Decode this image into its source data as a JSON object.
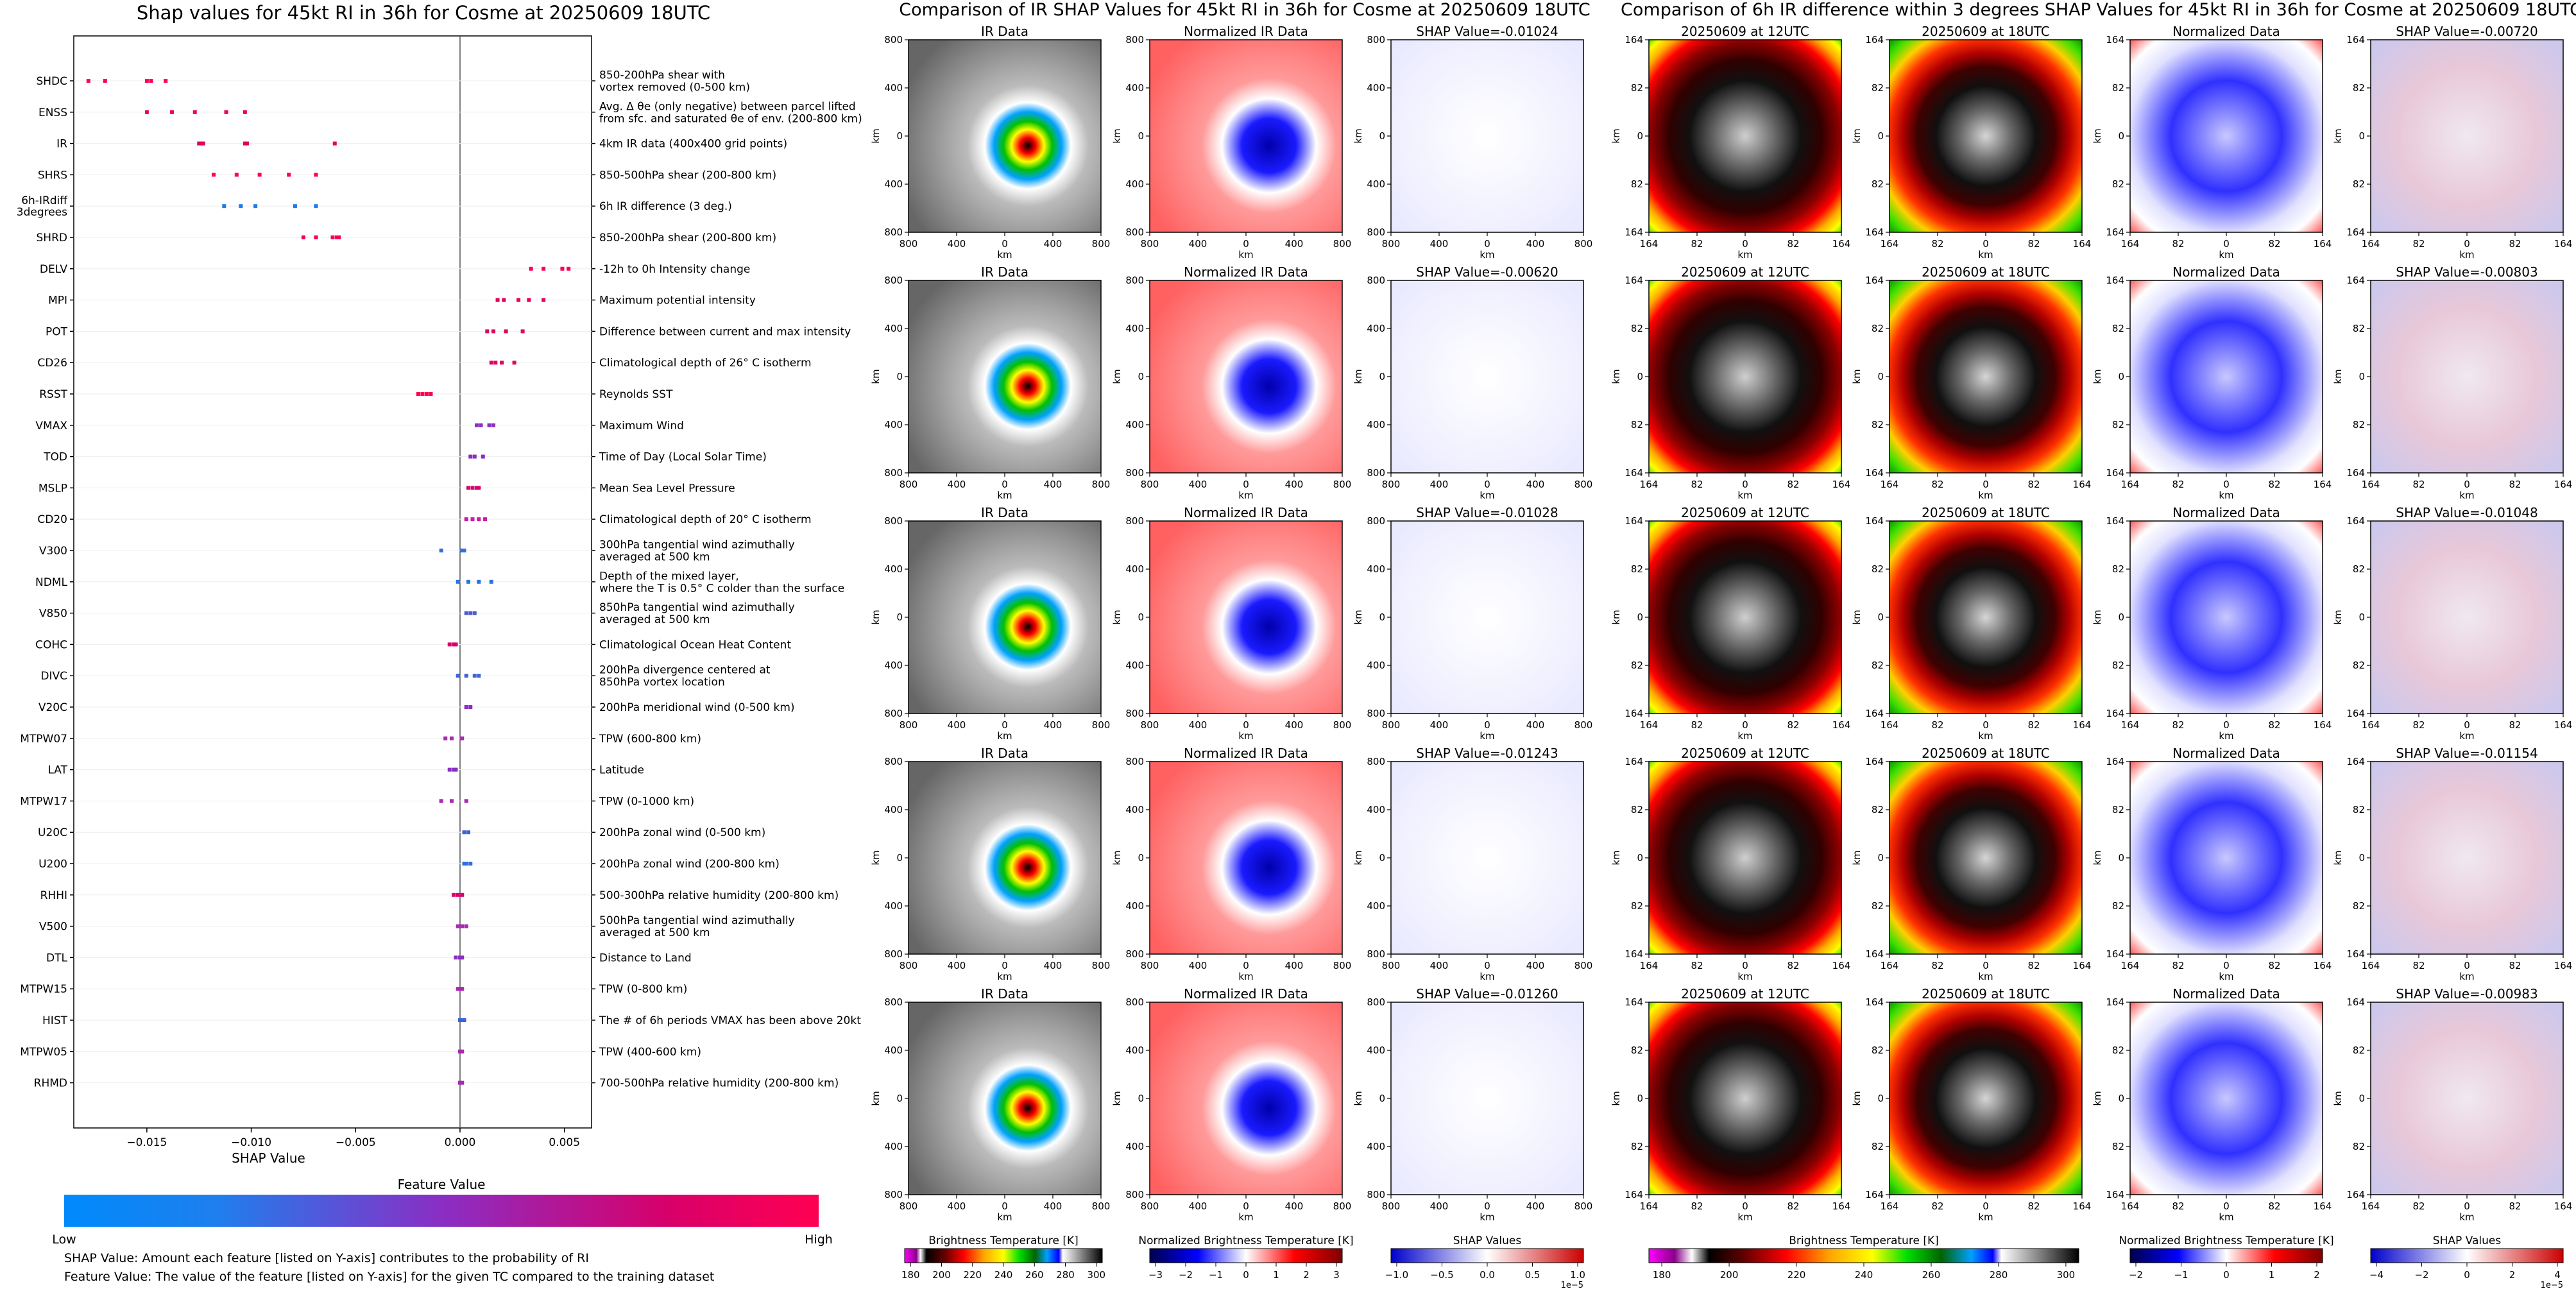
{
  "figure": {
    "left_title": "Shap values for 45kt RI in 36h for Cosme at 20250609 18UTC",
    "middle_title": "Comparison of IR SHAP Values for 45kt RI in 36h for Cosme at 20250609 18UTC",
    "right_title": "Comparison of 6h IR difference within 3 degrees SHAP Values for 45kt RI in 36h for Cosme at 20250609 18UTC"
  },
  "chart_data": [
    {
      "type": "scatter",
      "title": "Shap values for 45kt RI in 36h for Cosme at 20250609 18UTC",
      "xlabel": "SHAP Value",
      "xlim": [
        -0.0185,
        0.0063
      ],
      "xticks": [
        -0.015,
        -0.01,
        -0.005,
        0.0,
        0.005
      ],
      "xtick_labels": [
        "−0.015",
        "−0.010",
        "−0.005",
        "0.000",
        "0.005"
      ],
      "color_scale": {
        "label": "Feature Value",
        "low": "Low",
        "high": "High",
        "low_color": "#008afb",
        "high_color": "#ff0052"
      },
      "footnotes": [
        "SHAP Value: Amount each feature [listed on Y-axis] contributes to the probability of RI",
        "Feature Value: The value of the feature [listed on Y-axis] for the given TC compared to the training dataset"
      ],
      "features": [
        {
          "name": "SHDC",
          "description": "850-200hPa shear with\nvortex removed (0-500 km)",
          "color": "#ff0052",
          "values": [
            -0.0178,
            -0.017,
            -0.015,
            -0.0148,
            -0.0141
          ]
        },
        {
          "name": "ENSS",
          "description": "Avg. Δ θe (only negative) between parcel lifted\nfrom sfc. and saturated θe of env. (200-800 km)",
          "color": "#ee0059",
          "values": [
            -0.015,
            -0.0138,
            -0.0127,
            -0.0112,
            -0.0103
          ]
        },
        {
          "name": "IR",
          "description": "4km IR data (400x400 grid points)",
          "color": "#e2005f",
          "values": [
            -0.0125,
            -0.0124,
            -0.0123,
            -0.0103,
            -0.0102,
            -0.006
          ]
        },
        {
          "name": "SHRS",
          "description": "850-500hPa shear (200-800 km)",
          "color": "#ff0052",
          "values": [
            -0.0118,
            -0.0107,
            -0.0096,
            -0.0082,
            -0.0069
          ]
        },
        {
          "name": "6h-IRdiff\n3degrees",
          "description": "6h IR difference (3 deg.)",
          "color": "#1b7dea",
          "values": [
            -0.0113,
            -0.0105,
            -0.0098,
            -0.0079,
            -0.0069
          ]
        },
        {
          "name": "SHRD",
          "description": "850-200hPa shear (200-800 km)",
          "color": "#f00057",
          "values": [
            -0.0075,
            -0.0069,
            -0.0061,
            -0.0059,
            -0.0058
          ]
        },
        {
          "name": "DELV",
          "description": "-12h to 0h Intensity change",
          "color": "#ff0052",
          "values": [
            0.0034,
            0.004,
            0.0049,
            0.0052
          ]
        },
        {
          "name": "MPI",
          "description": "Maximum potential intensity",
          "color": "#e6005c",
          "values": [
            0.0018,
            0.0021,
            0.0028,
            0.0033,
            0.004
          ]
        },
        {
          "name": "POT",
          "description": "Difference between current and max intensity",
          "color": "#e4005d",
          "values": [
            0.0013,
            0.0016,
            0.0022,
            0.003
          ]
        },
        {
          "name": "CD26",
          "description": "Climatological depth of 26° C isotherm",
          "color": "#e4005d",
          "values": [
            0.0015,
            0.0017,
            0.002,
            0.0026
          ]
        },
        {
          "name": "RSST",
          "description": "Reynolds SST",
          "color": "#ff0052",
          "values": [
            -0.002,
            -0.0018,
            -0.0016,
            -0.0014
          ]
        },
        {
          "name": "VMAX",
          "description": "Maximum Wind",
          "color": "#8a2ec4",
          "values": [
            0.0008,
            0.001,
            0.0014,
            0.0016
          ]
        },
        {
          "name": "TOD",
          "description": "Time of Day (Local Solar Time)",
          "color": "#8a2ec4",
          "values": [
            0.0005,
            0.0007,
            0.0011
          ]
        },
        {
          "name": "MSLP",
          "description": "Mean Sea Level Pressure",
          "color": "#d8006a",
          "values": [
            0.0004,
            0.0006,
            0.0008,
            0.0009
          ]
        },
        {
          "name": "CD20",
          "description": "Climatological depth of 20° C isotherm",
          "color": "#c71fa3",
          "values": [
            0.0003,
            0.0006,
            0.0009,
            0.0012
          ]
        },
        {
          "name": "V300",
          "description": "300hPa tangential wind azimuthally\naveraged at 500 km",
          "color": "#2f6fe0",
          "values": [
            -0.0009,
            0.0001,
            0.0002
          ]
        },
        {
          "name": "NDML",
          "description": "Depth of the mixed layer,\nwhere the T is 0.5° C colder than the surface",
          "color": "#2d72e2",
          "values": [
            -0.0001,
            0.0004,
            0.0009,
            0.0015
          ]
        },
        {
          "name": "V850",
          "description": "850hPa tangential wind azimuthally\naveraged at 500 km",
          "color": "#4a5bd3",
          "values": [
            0.0003,
            0.0005,
            0.0007
          ]
        },
        {
          "name": "COHC",
          "description": "Climatological Ocean Heat Content",
          "color": "#d8006a",
          "values": [
            -0.0005,
            -0.0003,
            -0.0002
          ]
        },
        {
          "name": "DIVC",
          "description": "200hPa divergence centered at\n850hPa vortex location",
          "color": "#3a64d9",
          "values": [
            -0.0001,
            0.0003,
            0.0007,
            0.0009
          ]
        },
        {
          "name": "V20C",
          "description": "200hPa meridional wind (0-500 km)",
          "color": "#8a2ec4",
          "values": [
            0.0003,
            0.0005
          ]
        },
        {
          "name": "MTPW07",
          "description": "TPW (600-800 km)",
          "color": "#a928b3",
          "values": [
            -0.0007,
            -0.0004,
            0.0001
          ]
        },
        {
          "name": "LAT",
          "description": "Latitude",
          "color": "#8a2ec4",
          "values": [
            -0.0005,
            -0.0003,
            -0.0002
          ]
        },
        {
          "name": "MTPW17",
          "description": "TPW (0-1000 km)",
          "color": "#a928b3",
          "values": [
            -0.0009,
            -0.0004,
            0.0003
          ]
        },
        {
          "name": "U20C",
          "description": "200hPa zonal wind (0-500 km)",
          "color": "#3a64d9",
          "values": [
            0.0002,
            0.0004
          ]
        },
        {
          "name": "U200",
          "description": "200hPa zonal wind (200-800 km)",
          "color": "#2f6fe0",
          "values": [
            0.0002,
            0.0003,
            0.0005
          ]
        },
        {
          "name": "RHHI",
          "description": "500-300hPa relative humidity (200-800 km)",
          "color": "#d8006a",
          "values": [
            -0.0003,
            -0.0001,
            0.0001
          ]
        },
        {
          "name": "V500",
          "description": "500hPa tangential wind azimuthally\naveraged at 500 km",
          "color": "#a928b3",
          "values": [
            -0.0001,
            0.0001,
            0.0003
          ]
        },
        {
          "name": "DTL",
          "description": "Distance to Land",
          "color": "#8a2ec4",
          "values": [
            -0.0002,
            0.0,
            0.0001
          ]
        },
        {
          "name": "MTPW15",
          "description": "TPW (0-800 km)",
          "color": "#a928b3",
          "values": [
            -0.0001,
            0.0,
            0.0001
          ]
        },
        {
          "name": "HIST",
          "description": "The # of 6h periods VMAX has been above 20kt",
          "color": "#3a64d9",
          "values": [
            0.0,
            0.0001,
            0.0002
          ]
        },
        {
          "name": "MTPW05",
          "description": "TPW (400-600 km)",
          "color": "#a928b3",
          "values": [
            0.0,
            0.0001
          ]
        },
        {
          "name": "RHMD",
          "description": "700-500hPa relative humidity (200-800 km)",
          "color": "#a928b3",
          "values": [
            0.0,
            0.0001
          ]
        }
      ]
    },
    {
      "type": "heatmap",
      "title": "Comparison of IR SHAP Values for 45kt RI in 36h for Cosme at 20250609 18UTC",
      "xlabel": "km",
      "ylabel": "km",
      "ticks": [
        "800",
        "400",
        "0",
        "400",
        "800"
      ],
      "columns": [
        "IR Data",
        "Normalized IR Data"
      ],
      "shap_titles": [
        "SHAP Value=-0.01024",
        "SHAP Value=-0.00620",
        "SHAP Value=-0.01028",
        "SHAP Value=-0.01243",
        "SHAP Value=-0.01260"
      ],
      "colorbars": [
        {
          "label": "Brightness Temperature [K]",
          "ticks": [
            "180",
            "200",
            "220",
            "240",
            "260",
            "280",
            "300"
          ]
        },
        {
          "label": "Normalized Brightness Temperature [K]",
          "ticks": [
            "−3",
            "−2",
            "−1",
            "0",
            "1",
            "2",
            "3"
          ]
        },
        {
          "label": "SHAP Values",
          "ticks": [
            "−1.0",
            "−0.5",
            "0.0",
            "0.5",
            "1.0"
          ],
          "offset": "1e−5"
        }
      ]
    },
    {
      "type": "heatmap",
      "title": "Comparison of 6h IR difference within 3 degrees SHAP Values for 45kt RI in 36h for Cosme at 20250609 18UTC",
      "xlabel": "km",
      "ylabel": "km",
      "ticks": [
        "164",
        "82",
        "0",
        "82",
        "164"
      ],
      "columns": [
        "20250609 at 12UTC",
        "20250609 at 18UTC",
        "Normalized Data"
      ],
      "shap_titles": [
        "SHAP Value=-0.00720",
        "SHAP Value=-0.00803",
        "SHAP Value=-0.01048",
        "SHAP Value=-0.01154",
        "SHAP Value=-0.00983"
      ],
      "colorbars": [
        {
          "label": "Brightness Temperature [K]",
          "ticks": [
            "180",
            "200",
            "220",
            "240",
            "260",
            "280",
            "300"
          ]
        },
        {
          "label": "Normalized Brightness Temperature [K]",
          "ticks": [
            "−2",
            "−1",
            "0",
            "1",
            "2"
          ]
        },
        {
          "label": "SHAP Values",
          "ticks": [
            "−4",
            "−2",
            "0",
            "2",
            "4"
          ],
          "offset": "1e−5"
        }
      ]
    }
  ]
}
